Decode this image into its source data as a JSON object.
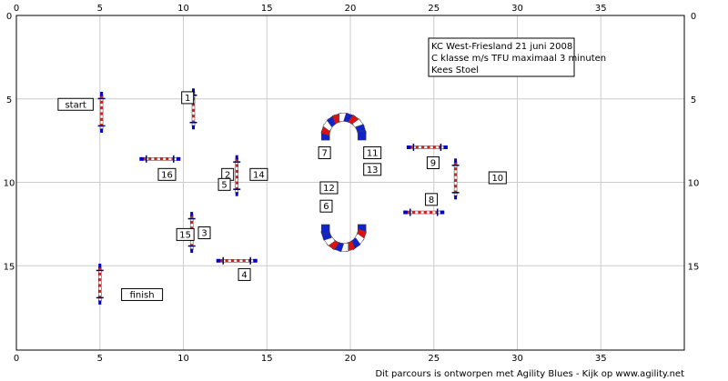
{
  "course_info": [
    "KC West-Friesland 21 juni 2008",
    "C klasse m/s TFU maximaal 3 minuten",
    "Kees Stoel"
  ],
  "footer": "Dit parcours is ontworpen met Agility Blues - Kijk op www.agility.net",
  "grid": {
    "x_ticks": [
      0,
      5,
      10,
      15,
      20,
      25,
      30,
      35
    ],
    "y_ticks": [
      0,
      5,
      10,
      15
    ]
  },
  "labels": [
    {
      "text": "start",
      "x": 2.5,
      "y": 5.3
    },
    {
      "text": "1",
      "x": 9.9,
      "y": 4.9
    },
    {
      "text": "finish",
      "x": 6.3,
      "y": 16.7
    },
    {
      "text": "16",
      "x": 8.5,
      "y": 9.5
    },
    {
      "text": "2",
      "x": 12.3,
      "y": 9.5
    },
    {
      "text": "5",
      "x": 12.1,
      "y": 10.1
    },
    {
      "text": "14",
      "x": 14.0,
      "y": 9.5
    },
    {
      "text": "15",
      "x": 9.6,
      "y": 13.1
    },
    {
      "text": "3",
      "x": 10.9,
      "y": 13.0
    },
    {
      "text": "4",
      "x": 13.3,
      "y": 15.5
    },
    {
      "text": "7",
      "x": 18.1,
      "y": 8.2
    },
    {
      "text": "11",
      "x": 20.8,
      "y": 8.2
    },
    {
      "text": "13",
      "x": 20.8,
      "y": 9.2
    },
    {
      "text": "12",
      "x": 18.2,
      "y": 10.3
    },
    {
      "text": "6",
      "x": 18.2,
      "y": 11.4
    },
    {
      "text": "9",
      "x": 24.6,
      "y": 8.8
    },
    {
      "text": "10",
      "x": 28.3,
      "y": 9.7
    },
    {
      "text": "8",
      "x": 24.5,
      "y": 11.0
    }
  ],
  "jumps": [
    {
      "id": "jump-start",
      "x": 5.1,
      "y": 5.8,
      "orientation": "vertical"
    },
    {
      "id": "jump-1",
      "x": 10.6,
      "y": 5.6,
      "orientation": "vertical"
    },
    {
      "id": "jump-16",
      "x": 8.6,
      "y": 8.6,
      "orientation": "horizontal"
    },
    {
      "id": "jump-2-5-14",
      "x": 13.2,
      "y": 9.6,
      "orientation": "vertical"
    },
    {
      "id": "jump-3-15",
      "x": 10.5,
      "y": 13.0,
      "orientation": "vertical"
    },
    {
      "id": "jump-4",
      "x": 13.2,
      "y": 14.7,
      "orientation": "horizontal"
    },
    {
      "id": "jump-finish",
      "x": 5.0,
      "y": 16.1,
      "orientation": "vertical"
    },
    {
      "id": "jump-9",
      "x": 24.6,
      "y": 7.9,
      "orientation": "horizontal"
    },
    {
      "id": "jump-10",
      "x": 26.3,
      "y": 9.8,
      "orientation": "vertical"
    },
    {
      "id": "jump-8",
      "x": 24.4,
      "y": 11.8,
      "orientation": "horizontal"
    }
  ],
  "tunnels": [
    {
      "id": "tunnel-top",
      "cx": 19.6,
      "cy": 7.2,
      "open": "down"
    },
    {
      "id": "tunnel-bottom",
      "cx": 19.6,
      "cy": 12.8,
      "open": "up"
    }
  ],
  "colors": {
    "grid": "#cccccc",
    "frame": "#000000",
    "bar_red": "#cc2222",
    "bar_white": "#ffffff",
    "post": "#000066",
    "wing": "#0000cc",
    "tunnel_red": "#dd1111",
    "tunnel_blue": "#1122cc"
  }
}
